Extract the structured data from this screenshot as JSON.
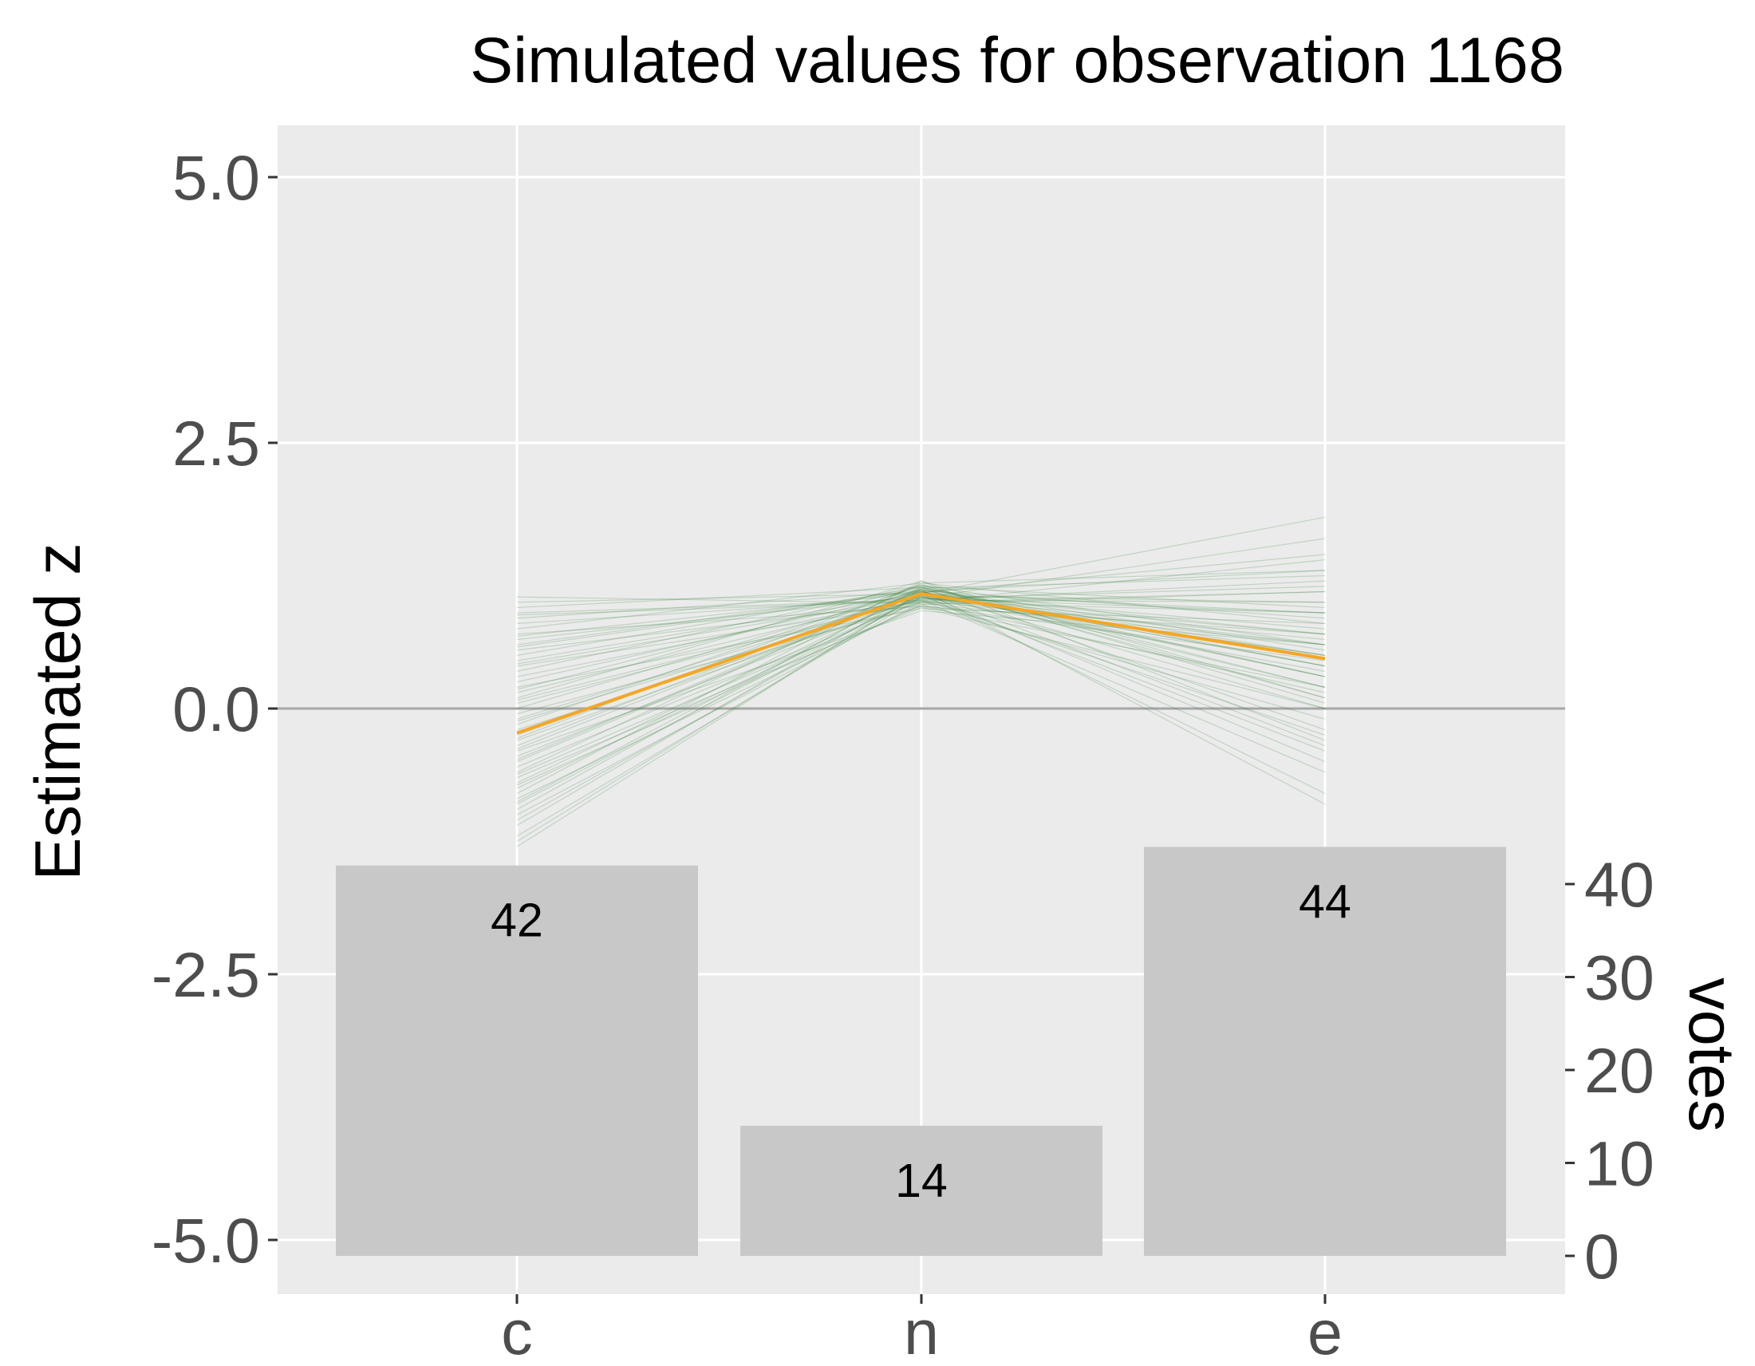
{
  "chart_data": {
    "type": "line",
    "title": "Simulated values for observation 1168",
    "ylabel": "Estimated z",
    "secondary_ylabel": "votes",
    "categories": [
      "c",
      "n",
      "e"
    ],
    "ylim": [
      -5.5,
      5.5
    ],
    "yticks": [
      5.0,
      2.5,
      0.0,
      -2.5,
      -5.0
    ],
    "ytick_labels": [
      "5.0",
      "2.5",
      "0.0",
      "-2.5",
      "-5.0"
    ],
    "secondary_ylim": [
      0,
      44
    ],
    "secondary_yticks": [
      40,
      30,
      20,
      10,
      0
    ],
    "secondary_ytick_labels": [
      "40",
      "30",
      "20",
      "10",
      "0"
    ],
    "reference_line_y": 0.0,
    "estimate_series": {
      "values": [
        -0.23,
        1.08,
        0.47
      ]
    },
    "simulated_series": [
      [
        -1.3,
        1.1,
        0.4
      ],
      [
        -1.2,
        1.05,
        0.6
      ],
      [
        -1.1,
        1.12,
        0.2
      ],
      [
        -1.0,
        1.0,
        0.9
      ],
      [
        -0.95,
        1.15,
        0.1
      ],
      [
        -0.9,
        1.08,
        0.7
      ],
      [
        -0.85,
        0.98,
        1.1
      ],
      [
        -0.8,
        1.2,
        -0.3
      ],
      [
        -0.75,
        1.05,
        0.5
      ],
      [
        -0.7,
        1.1,
        1.3
      ],
      [
        -0.65,
        0.95,
        0.0
      ],
      [
        -0.6,
        1.18,
        0.8
      ],
      [
        -0.55,
        1.02,
        -0.6
      ],
      [
        -0.5,
        1.12,
        0.3
      ],
      [
        -0.45,
        1.06,
        1.0
      ],
      [
        -0.4,
        0.92,
        0.6
      ],
      [
        -0.35,
        1.14,
        -0.2
      ],
      [
        -0.3,
        1.04,
        0.9
      ],
      [
        -0.25,
        1.1,
        0.4
      ],
      [
        -0.2,
        1.0,
        1.4
      ],
      [
        -0.15,
        1.16,
        0.2
      ],
      [
        -0.1,
        1.08,
        -0.8
      ],
      [
        -0.05,
        0.96,
        0.7
      ],
      [
        0.0,
        1.12,
        0.5
      ],
      [
        0.05,
        1.02,
        1.2
      ],
      [
        0.1,
        1.2,
        0.1
      ],
      [
        0.15,
        1.06,
        -0.4
      ],
      [
        0.2,
        0.94,
        0.8
      ],
      [
        0.25,
        1.1,
        0.3
      ],
      [
        0.3,
        1.04,
        1.6
      ],
      [
        0.35,
        1.16,
        0.6
      ],
      [
        0.4,
        0.98,
        -0.1
      ],
      [
        0.45,
        1.08,
        0.9
      ],
      [
        0.5,
        1.14,
        0.4
      ],
      [
        0.55,
        1.0,
        1.1
      ],
      [
        0.6,
        1.12,
        -0.9
      ],
      [
        0.65,
        1.06,
        0.5
      ],
      [
        0.7,
        0.96,
        0.2
      ],
      [
        0.75,
        1.18,
        1.3
      ],
      [
        0.8,
        1.04,
        0.7
      ],
      [
        0.85,
        1.1,
        0.0
      ],
      [
        0.9,
        1.02,
        1.0
      ],
      [
        0.95,
        1.14,
        0.3
      ],
      [
        1.0,
        1.08,
        1.8
      ],
      [
        1.05,
        0.99,
        0.6
      ],
      [
        -1.25,
        1.09,
        -0.5
      ],
      [
        -0.88,
        1.13,
        1.25
      ],
      [
        -0.62,
        1.01,
        0.15
      ],
      [
        -0.38,
        1.11,
        0.85
      ],
      [
        -0.12,
        1.03,
        -0.25
      ],
      [
        0.18,
        1.15,
        0.95
      ],
      [
        0.42,
        1.05,
        0.35
      ],
      [
        0.68,
        1.09,
        1.45
      ],
      [
        -1.05,
        1.07,
        0.75
      ],
      [
        -0.72,
        0.97,
        0.45
      ],
      [
        -0.28,
        1.17,
        0.05
      ],
      [
        0.08,
        1.03,
        1.15
      ],
      [
        0.58,
        1.11,
        -0.35
      ],
      [
        0.88,
        1.01,
        0.65
      ],
      [
        -0.48,
        1.13,
        0.55
      ]
    ],
    "bars": [
      {
        "category": "c",
        "value": 42,
        "label": "42"
      },
      {
        "category": "n",
        "value": 14,
        "label": "14"
      },
      {
        "category": "e",
        "value": 44,
        "label": "44"
      }
    ],
    "colors": {
      "panel": "#ebebeb",
      "grid": "#ffffff",
      "estimate": "#f5a623",
      "simulated": "#2e7d32",
      "bars": "#c8c8c8",
      "reference": "#a6a6a6",
      "tick": "#333333"
    },
    "grid": true,
    "legend": "none"
  }
}
